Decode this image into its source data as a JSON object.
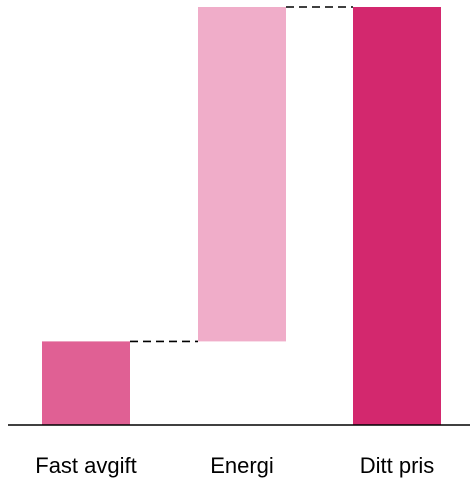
{
  "chart_data": {
    "type": "bar",
    "subtype": "waterfall",
    "categories": [
      "Fast avgift",
      "Energi",
      "Ditt pris"
    ],
    "values": [
      1,
      4,
      5
    ],
    "cumulative": [
      1,
      5,
      5
    ],
    "ylim": [
      0,
      5
    ],
    "grid": false,
    "legend": "none",
    "colors": [
      "#e06094",
      "#f0adc9",
      "#d3286e"
    ],
    "connector_color": "#000000",
    "axis_color": "#000000"
  }
}
